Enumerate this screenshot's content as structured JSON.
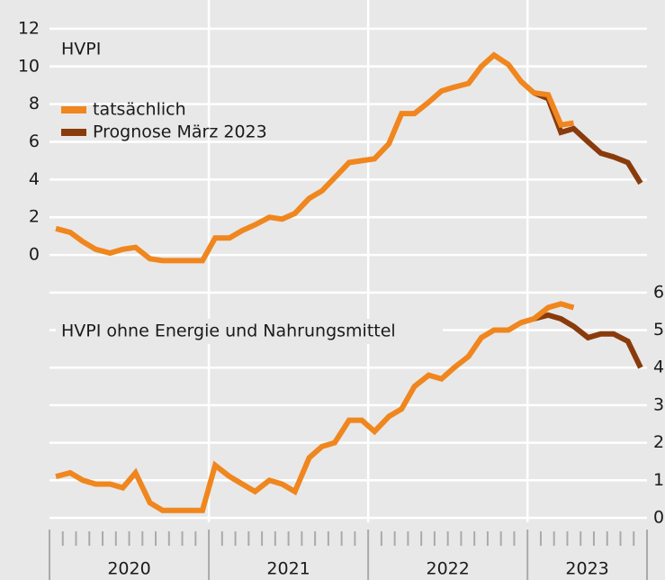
{
  "chart_data": [
    {
      "type": "line",
      "title": "HVPI",
      "axis_side": "left",
      "grid": true,
      "legend": "upper left",
      "x": [
        2020.04,
        2020.13,
        2020.21,
        2020.29,
        2020.38,
        2020.46,
        2020.54,
        2020.63,
        2020.71,
        2020.79,
        2020.88,
        2020.96,
        2021.04,
        2021.13,
        2021.21,
        2021.29,
        2021.38,
        2021.46,
        2021.54,
        2021.63,
        2021.71,
        2021.79,
        2021.88,
        2021.96,
        2022.04,
        2022.13,
        2022.21,
        2022.29,
        2022.38,
        2022.46,
        2022.54,
        2022.63,
        2022.71,
        2022.79,
        2022.88,
        2022.96,
        2023.04,
        2023.13,
        2023.21,
        2023.29,
        2023.38,
        2023.46,
        2023.54,
        2023.63,
        2023.71
      ],
      "xlim": [
        2020,
        2023.75
      ],
      "ylim": [
        -1,
        13
      ],
      "yticks": [
        0,
        2,
        4,
        6,
        8,
        10,
        12
      ],
      "series": [
        {
          "name": "Prognose März 2023",
          "color": "#8a3b0c",
          "values": [
            null,
            null,
            null,
            null,
            null,
            null,
            null,
            null,
            null,
            null,
            null,
            null,
            null,
            null,
            null,
            null,
            null,
            null,
            null,
            null,
            null,
            null,
            null,
            null,
            null,
            null,
            null,
            null,
            null,
            null,
            null,
            null,
            null,
            null,
            null,
            null,
            8.6,
            8.3,
            6.5,
            6.7,
            6.0,
            5.4,
            5.2,
            4.9,
            3.8
          ]
        },
        {
          "name": "tatsächlich",
          "color": "#f0861e",
          "values": [
            1.4,
            1.2,
            0.7,
            0.3,
            0.1,
            0.3,
            0.4,
            -0.2,
            -0.3,
            -0.3,
            -0.3,
            -0.3,
            0.9,
            0.9,
            1.3,
            1.6,
            2.0,
            1.9,
            2.2,
            3.0,
            3.4,
            4.1,
            4.9,
            5.0,
            5.1,
            5.9,
            7.5,
            7.5,
            8.1,
            8.7,
            8.9,
            9.1,
            10.0,
            10.6,
            10.1,
            9.2,
            8.6,
            8.5,
            6.9,
            7.0,
            null,
            null,
            null,
            null,
            null
          ]
        }
      ]
    },
    {
      "type": "line",
      "title": "HVPI ohne Energie und Nahrungsmittel",
      "axis_side": "right",
      "grid": true,
      "x": [
        2020.04,
        2020.13,
        2020.21,
        2020.29,
        2020.38,
        2020.46,
        2020.54,
        2020.63,
        2020.71,
        2020.79,
        2020.88,
        2020.96,
        2021.04,
        2021.13,
        2021.21,
        2021.29,
        2021.38,
        2021.46,
        2021.54,
        2021.63,
        2021.71,
        2021.79,
        2021.88,
        2021.96,
        2022.04,
        2022.13,
        2022.21,
        2022.29,
        2022.38,
        2022.46,
        2022.54,
        2022.63,
        2022.71,
        2022.79,
        2022.88,
        2022.96,
        2023.04,
        2023.13,
        2023.21,
        2023.29,
        2023.38,
        2023.46,
        2023.54,
        2023.63,
        2023.71
      ],
      "xlim": [
        2020,
        2023.75
      ],
      "xticks": [
        {
          "value": 2020.5,
          "label": "2020"
        },
        {
          "value": 2021.5,
          "label": "2021"
        },
        {
          "value": 2022.5,
          "label": "2022"
        },
        {
          "value": 2023.375,
          "label": "2023"
        }
      ],
      "ylim": [
        -0.12,
        6.5
      ],
      "yticks": [
        0,
        1,
        2,
        3,
        4,
        5,
        6
      ],
      "series": [
        {
          "color": "#8a3b0c",
          "values": [
            null,
            null,
            null,
            null,
            null,
            null,
            null,
            null,
            null,
            null,
            null,
            null,
            null,
            null,
            null,
            null,
            null,
            null,
            null,
            null,
            null,
            null,
            null,
            null,
            null,
            null,
            null,
            null,
            null,
            null,
            null,
            null,
            null,
            null,
            null,
            null,
            5.3,
            5.4,
            5.3,
            5.1,
            4.8,
            4.9,
            4.9,
            4.7,
            4.0
          ]
        },
        {
          "color": "#f0861e",
          "values": [
            1.1,
            1.2,
            1.0,
            0.9,
            0.9,
            0.8,
            1.2,
            0.4,
            0.2,
            0.2,
            0.2,
            0.2,
            1.4,
            1.1,
            0.9,
            0.7,
            1.0,
            0.9,
            0.7,
            1.6,
            1.9,
            2.0,
            2.6,
            2.6,
            2.3,
            2.7,
            2.9,
            3.5,
            3.8,
            3.7,
            4.0,
            4.3,
            4.8,
            5.0,
            5.0,
            5.2,
            5.3,
            5.6,
            5.7,
            5.6,
            null,
            null,
            null,
            null,
            null
          ]
        }
      ]
    }
  ]
}
